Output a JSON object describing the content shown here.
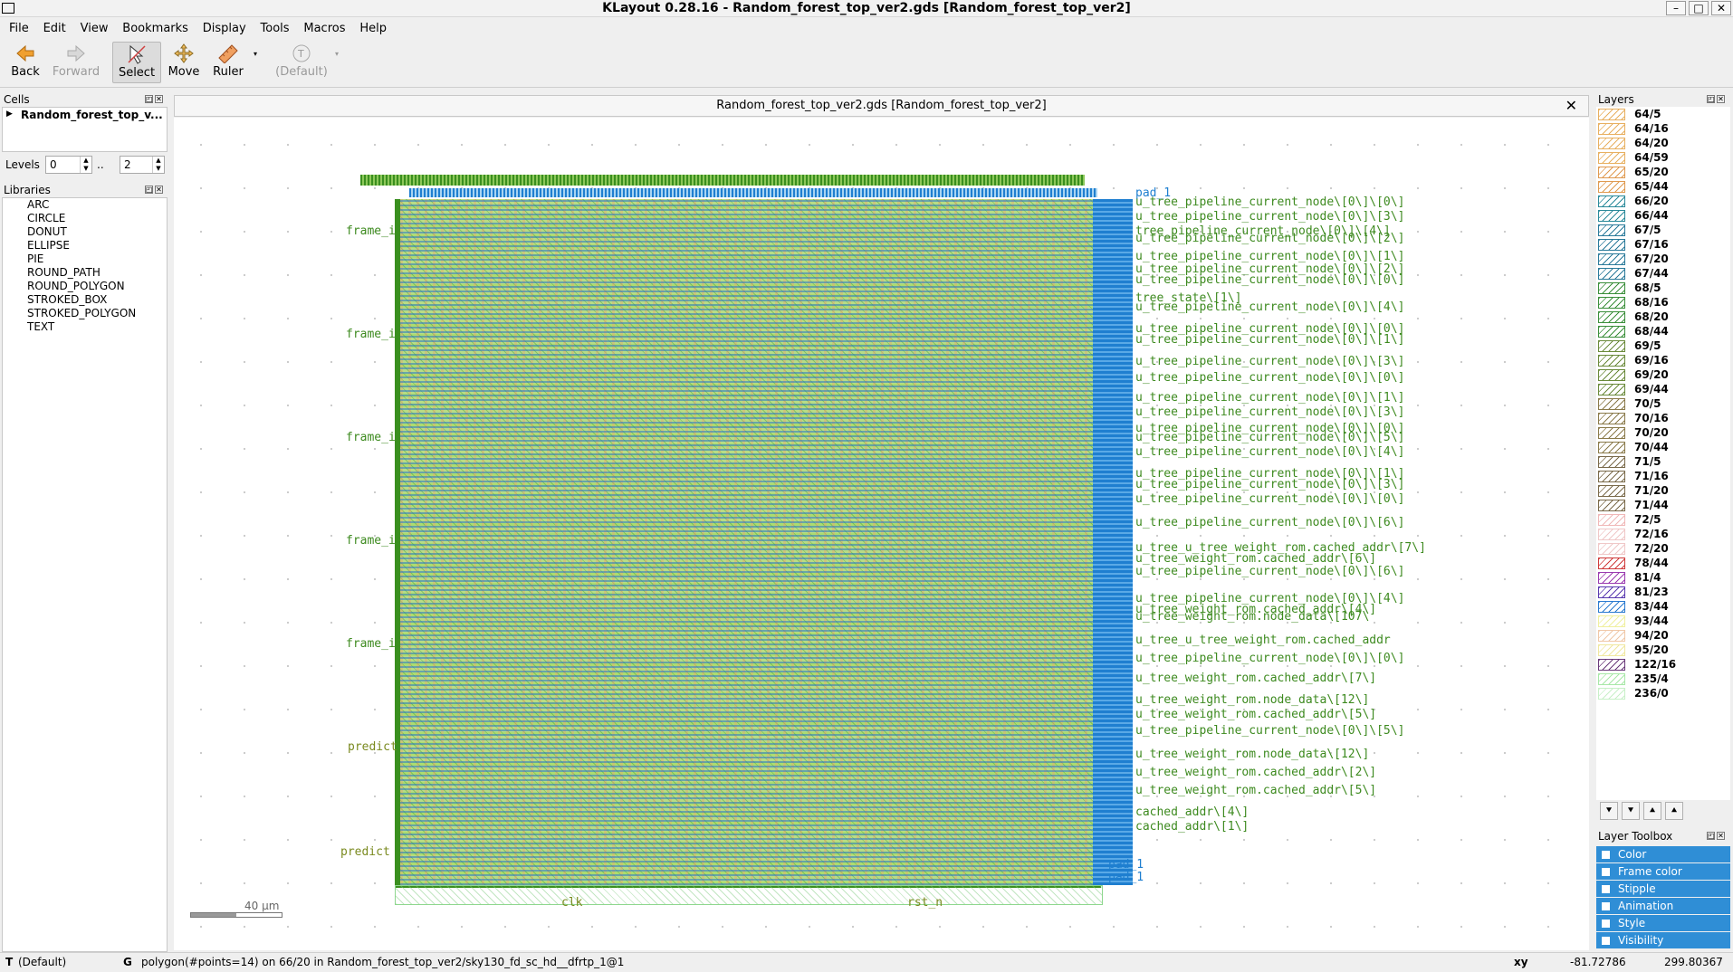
{
  "window": {
    "title": "KLayout 0.28.16 - Random_forest_top_ver2.gds [Random_forest_top_ver2]",
    "minimize": "–",
    "maximize": "□",
    "close": "✕"
  },
  "menu": [
    "File",
    "Edit",
    "View",
    "Bookmarks",
    "Display",
    "Tools",
    "Macros",
    "Help"
  ],
  "toolbar": {
    "back": "Back",
    "forward": "Forward",
    "select": "Select",
    "move": "Move",
    "ruler": "Ruler",
    "default": "(Default)"
  },
  "cells": {
    "header": "Cells",
    "top_cell": "Random_forest_top_v..."
  },
  "levels": {
    "label": "Levels",
    "from": "0",
    "sep": "..",
    "to": "2"
  },
  "libraries": {
    "header": "Libraries",
    "items": [
      "ARC",
      "CIRCLE",
      "DONUT",
      "ELLIPSE",
      "PIE",
      "ROUND_PATH",
      "ROUND_POLYGON",
      "STROKED_BOX",
      "STROKED_POLYGON",
      "TEXT"
    ]
  },
  "viewer": {
    "tab_title": "Random_forest_top_ver2.gds [Random_forest_top_ver2]",
    "close": "✕",
    "scale_label": "40 µm",
    "left_labels": [
      "frame_i",
      "frame_i",
      "frame_i",
      "frame_i",
      "frame_i",
      "predict",
      "predict"
    ],
    "bottom_labels": [
      "clk",
      "rst_n"
    ],
    "right_labels": [
      "pad_1",
      "u_tree_pipeline_current_node\\[0\\]\\[0\\]",
      "u_tree_pipeline_current_node\\[0\\]\\[3\\]",
      "tree_pipeline_current_node\\[0\\]\\[4\\]",
      "u_tree_pipeline_current_node\\[0\\]\\[2\\]",
      "u_tree_pipeline_current_node\\[0\\]\\[1\\]",
      "u_tree_pipeline_current_node\\[0\\]\\[2\\]",
      "u_tree_pipeline_current_node\\[0\\]\\[0\\]",
      "tree_state\\[1\\]",
      "u_tree_pipeline_current_node\\[0\\]\\[4\\]",
      "u_tree_pipeline_current_node\\[0\\]\\[0\\]",
      "u_tree_pipeline_current_node\\[0\\]\\[1\\]",
      "u_tree_pipeline_current_node\\[0\\]\\[3\\]",
      "u_tree_pipeline_current_node\\[0\\]\\[0\\]",
      "u_tree_pipeline_current_node\\[0\\]\\[1\\]",
      "u_tree_pipeline_current_node\\[0\\]\\[3\\]",
      "u_tree_pipeline_current_node\\[0\\]\\[0\\]",
      "u_tree_pipeline_current_node\\[0\\]\\[5\\]",
      "u_tree_pipeline_current_node\\[0\\]\\[4\\]",
      "u_tree_pipeline_current_node\\[0\\]\\[1\\]",
      "u_tree_pipeline_current_node\\[0\\]\\[3\\]",
      "u_tree_pipeline_current_node\\[0\\]\\[0\\]",
      "u_tree_pipeline_current_node\\[0\\]\\[6\\]",
      "u_tree_u_tree_weight_rom.cached_addr\\[7\\]",
      "u_tree_weight_rom.cached_addr\\[6\\]",
      "u_tree_pipeline_current_node\\[0\\]\\[6\\]",
      "u_tree_pipeline_current_node\\[0\\]\\[4\\]",
      "u_tree_weight_rom.cached_addr\\[4\\]",
      "u_tree_weight_rom.node_data\\[107\\",
      "u_tree_u_tree_weight_rom.cached_addr",
      "u_tree_pipeline_current_node\\[0\\]\\[0\\]",
      "u_tree_weight_rom.cached_addr\\[7\\]",
      "u_tree_weight_rom.node_data\\[12\\]",
      "u_tree_weight_rom.cached_addr\\[5\\]",
      "u_tree_pipeline_current_node\\[0\\]\\[5\\]",
      "u_tree_weight_rom.node_data\\[12\\]",
      "u_tree_weight_rom.cached_addr\\[2\\]",
      "u_tree_weight_rom.cached_addr\\[5\\]",
      "cached_addr\\[4\\]",
      "cached_addr\\[1\\]",
      "pad_1",
      "pad_1"
    ]
  },
  "layers": {
    "header": "Layers",
    "items": [
      {
        "name": "64/5",
        "color": "#e8b060"
      },
      {
        "name": "64/16",
        "color": "#e8b060"
      },
      {
        "name": "64/20",
        "color": "#e8b060"
      },
      {
        "name": "64/59",
        "color": "#e8b060"
      },
      {
        "name": "65/20",
        "color": "#e09a50"
      },
      {
        "name": "65/44",
        "color": "#e09a50"
      },
      {
        "name": "66/20",
        "color": "#2a8a9a"
      },
      {
        "name": "66/44",
        "color": "#2a8a9a"
      },
      {
        "name": "67/5",
        "color": "#2a7a9a"
      },
      {
        "name": "67/16",
        "color": "#2a7a9a"
      },
      {
        "name": "67/20",
        "color": "#2a7a9a"
      },
      {
        "name": "67/44",
        "color": "#2a7a9a"
      },
      {
        "name": "68/5",
        "color": "#3a8f3a"
      },
      {
        "name": "68/16",
        "color": "#3a8f3a"
      },
      {
        "name": "68/20",
        "color": "#3a8f3a"
      },
      {
        "name": "68/44",
        "color": "#3a8f3a"
      },
      {
        "name": "69/5",
        "color": "#6a8a3a"
      },
      {
        "name": "69/16",
        "color": "#6a8a3a"
      },
      {
        "name": "69/20",
        "color": "#6a8a3a"
      },
      {
        "name": "69/44",
        "color": "#6a8a3a"
      },
      {
        "name": "70/5",
        "color": "#8a7a4a"
      },
      {
        "name": "70/16",
        "color": "#8a7a4a"
      },
      {
        "name": "70/20",
        "color": "#8a7a4a"
      },
      {
        "name": "70/44",
        "color": "#8a7a4a"
      },
      {
        "name": "71/5",
        "color": "#7a6a4a"
      },
      {
        "name": "71/16",
        "color": "#7a6a4a"
      },
      {
        "name": "71/20",
        "color": "#7a6a4a"
      },
      {
        "name": "71/44",
        "color": "#7a6a4a"
      },
      {
        "name": "72/5",
        "color": "#f0b8b8"
      },
      {
        "name": "72/16",
        "color": "#f0c8c8"
      },
      {
        "name": "72/20",
        "color": "#f0c8c8"
      },
      {
        "name": "78/44",
        "color": "#d03a3a"
      },
      {
        "name": "81/4",
        "color": "#9a3ab0"
      },
      {
        "name": "81/23",
        "color": "#5a3ab0"
      },
      {
        "name": "83/44",
        "color": "#2a7ad0"
      },
      {
        "name": "93/44",
        "color": "#f0f0a0"
      },
      {
        "name": "94/20",
        "color": "#f0c8a8"
      },
      {
        "name": "95/20",
        "color": "#f0e8a0"
      },
      {
        "name": "122/16",
        "color": "#6a3a7a"
      },
      {
        "name": "235/4",
        "color": "#a8e8a8"
      },
      {
        "name": "236/0",
        "color": "#c8f0c8"
      }
    ]
  },
  "layer_toolbox": {
    "header": "Layer Toolbox",
    "items": [
      "Color",
      "Frame color",
      "Stipple",
      "Animation",
      "Style",
      "Visibility"
    ]
  },
  "status": {
    "mode": "T",
    "mode_value": "(Default)",
    "g": "G",
    "message": "polygon(#points=14) on 66/20 in Random_forest_top_ver2/sky130_fd_sc_hd__dfrtp_1@1",
    "coord_label": "xy",
    "x": "-81.72786",
    "y": "299.80367"
  }
}
